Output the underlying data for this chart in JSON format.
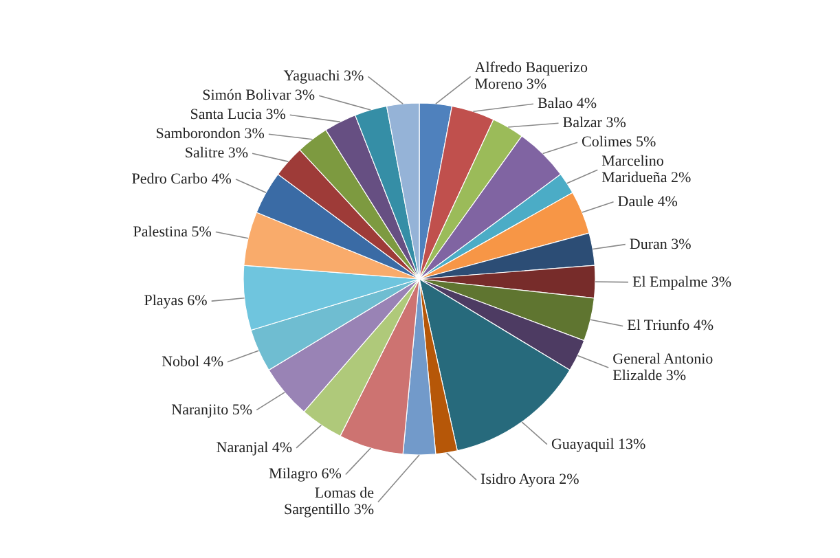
{
  "chart_data": {
    "type": "pie",
    "categories": [
      "Alfredo Baquerizo Moreno",
      "Balao",
      "Balzar",
      "Colimes",
      "Marcelino Maridueña",
      "Daule",
      "Duran",
      "El Empalme",
      "El Triunfo",
      "General Antonio Elizalde",
      "Guayaquil",
      "Isidro Ayora",
      "Lomas de Sargentillo",
      "Milagro",
      "Naranjal",
      "Naranjito",
      "Nobol",
      "Playas",
      "Palestina",
      "Pedro Carbo",
      "Salitre",
      "Samborondon",
      "Santa Lucia",
      "Simón Bolivar",
      "Yaguachi"
    ],
    "values": [
      3,
      4,
      3,
      5,
      2,
      4,
      3,
      3,
      4,
      3,
      13,
      2,
      3,
      6,
      4,
      5,
      4,
      6,
      5,
      4,
      3,
      3,
      3,
      3,
      3
    ],
    "value_labels": [
      "3%",
      "4%",
      "3%",
      "5%",
      "2%",
      "4%",
      "3%",
      "3%",
      "4%",
      "3%",
      "13%",
      "2%",
      "3%",
      "6%",
      "4%",
      "5%",
      "4%",
      "6%",
      "5%",
      "4%",
      "3%",
      "3%",
      "3%",
      "3%",
      "3%"
    ],
    "colors": [
      "#4f81bd",
      "#c0504d",
      "#9bbb59",
      "#8064a2",
      "#4bacc6",
      "#f79646",
      "#2c4d75",
      "#772c2a",
      "#5f7530",
      "#4d3b62",
      "#276a7c",
      "#b65708",
      "#729aca",
      "#cd7371",
      "#afc97a",
      "#9983b5",
      "#6fbdd1",
      "#6fc5de",
      "#f9ab6b",
      "#3a6ba5",
      "#9e3b38",
      "#7d9a40",
      "#664f82",
      "#358ea6",
      "#95b3d7"
    ]
  }
}
